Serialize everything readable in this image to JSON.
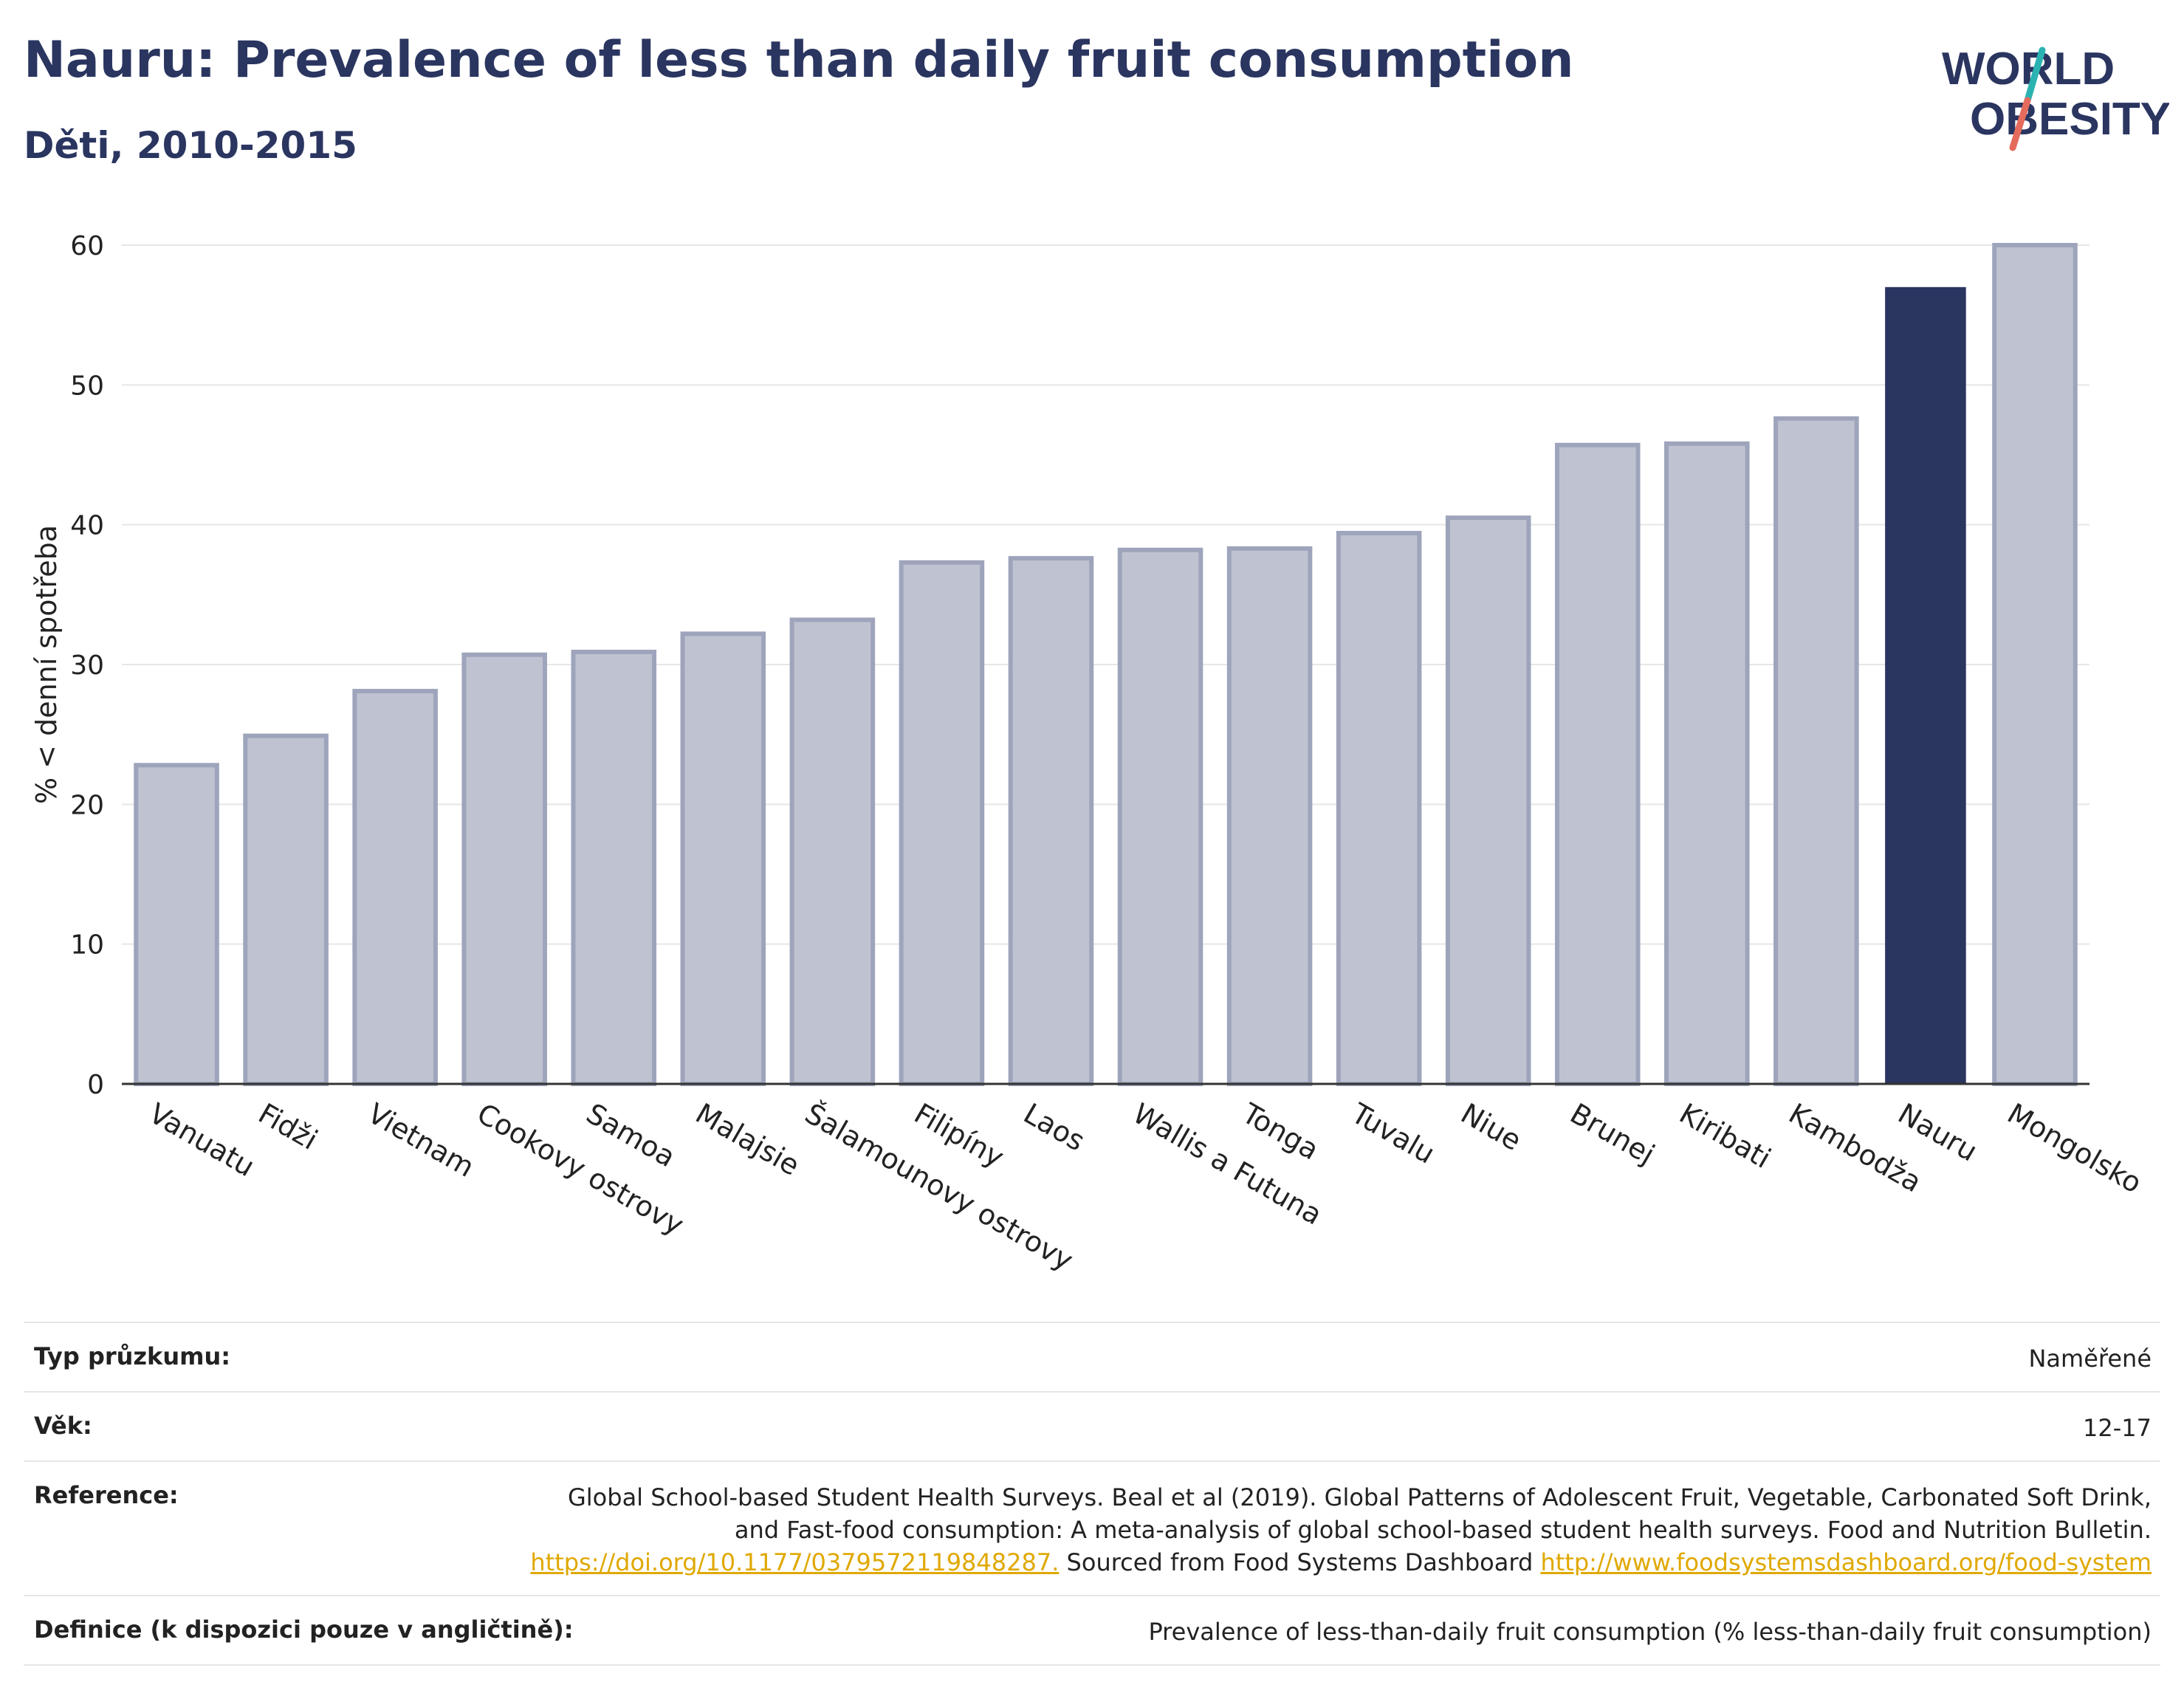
{
  "title": "Nauru: Prevalence of less than daily fruit consumption",
  "subtitle": "Děti, 2010-2015",
  "logo": {
    "line1": "WORLD",
    "line2": "OBESITY",
    "colors": {
      "text": "#2a3560",
      "slash_teal": "#2bb3b1",
      "slash_red": "#e56b5d"
    }
  },
  "colors": {
    "bar": "#bfc3d1",
    "bar_stroke": "#9ea4bb",
    "highlight": "#2a3560",
    "grid": "#e6e6e6",
    "link": "#e0a800"
  },
  "chart_data": {
    "type": "bar",
    "ylabel": "% < denní spotřeba",
    "ylim": [
      0,
      60
    ],
    "yticks": [
      0,
      10,
      20,
      30,
      40,
      50,
      60
    ],
    "grid": true,
    "highlight": "Nauru",
    "categories": [
      "Vanuatu",
      "Fidži",
      "Vietnam",
      "Cookovy ostrovy",
      "Samoa",
      "Malajsie",
      "Šalamounovy ostrovy",
      "Filipíny",
      "Laos",
      "Wallis a Futuna",
      "Tonga",
      "Tuvalu",
      "Niue",
      "Brunej",
      "Kiribati",
      "Kambodža",
      "Nauru",
      "Mongolsko"
    ],
    "values": [
      22.8,
      24.9,
      28.1,
      30.7,
      30.9,
      32.2,
      33.2,
      37.3,
      37.6,
      38.2,
      38.3,
      39.4,
      40.5,
      45.7,
      45.8,
      47.6,
      57.0,
      60.0
    ]
  },
  "meta": {
    "survey_type": {
      "label": "Typ průzkumu:",
      "value": "Naměřené"
    },
    "age": {
      "label": "Věk:",
      "value": "12-17"
    },
    "reference": {
      "label": "Reference:",
      "text1": "Global School-based Student Health Surveys. Beal et al (2019). Global Patterns of Adolescent Fruit, Vegetable, Carbonated Soft Drink, and Fast-food consumption: A meta-analysis of global school-based student health surveys. Food and Nutrition Bulletin.",
      "link1": "https://doi.org/10.1177/0379572119848287.",
      "text2": " Sourced from Food Systems Dashboard ",
      "link2": "http://www.foodsystemsdashboard.org/food-system"
    },
    "definition": {
      "label": "Definice (k dispozici pouze v angličtině):",
      "value": "Prevalence of less-than-daily fruit consumption (% less-than-daily fruit consumption)"
    }
  }
}
